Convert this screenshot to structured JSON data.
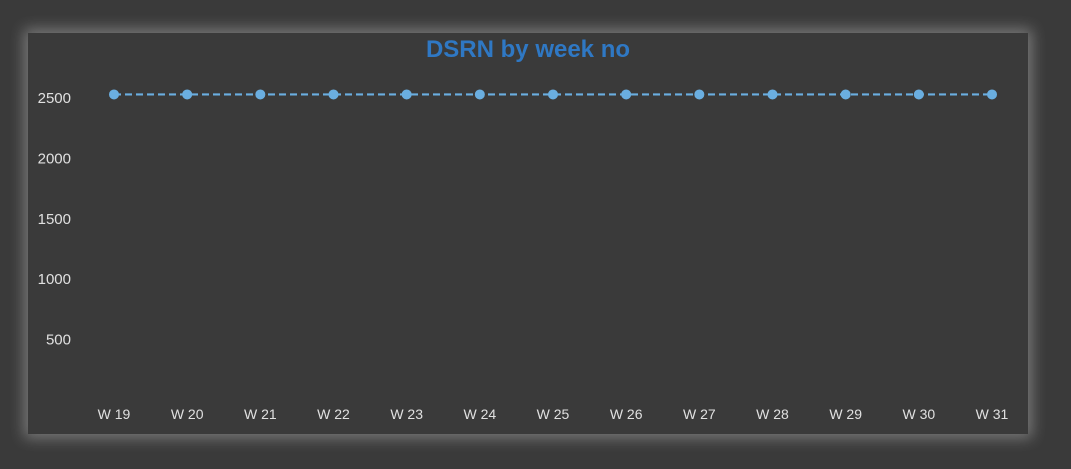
{
  "chart_data": {
    "type": "line",
    "title": "DSRN by week no",
    "xlabel": "",
    "ylabel": "",
    "categories": [
      "W 19",
      "W 20",
      "W 21",
      "W 22",
      "W 23",
      "W 24",
      "W 25",
      "W 26",
      "W 27",
      "W 28",
      "W 29",
      "W 30",
      "W 31"
    ],
    "series": [
      {
        "values": [
          2530,
          2530,
          2530,
          2530,
          2530,
          2530,
          2530,
          2530,
          2530,
          2530,
          2530,
          2530,
          2530
        ],
        "color": "#6aaee0",
        "line_style": "dashed",
        "markers": "circle"
      }
    ],
    "yticks": [
      "500",
      "1000",
      "1500",
      "2000",
      "2500"
    ],
    "ylim": [
      0,
      2600
    ],
    "grid": false,
    "legend": "none"
  },
  "colors": {
    "background": "#3a3a3a",
    "title": "#2f78c4",
    "text": "#e0e0e0",
    "series": "#6aaee0"
  }
}
